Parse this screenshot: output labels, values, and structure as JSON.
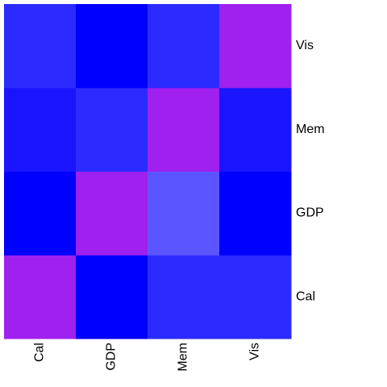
{
  "chart_data": {
    "type": "heatmap",
    "title": "",
    "xlabel": "",
    "ylabel": "",
    "x_categories": [
      "Cal",
      "GDP",
      "Mem",
      "Vis"
    ],
    "y_categories": [
      "Cal",
      "GDP",
      "Mem",
      "Vis"
    ],
    "y_axis_position": "right",
    "x_tick_rotation_degrees": -90,
    "legend": "none",
    "grid": false,
    "colors": [
      "#0000FF",
      "#1A14FF",
      "#2C2BFF",
      "#5A55FF",
      "#A020F0"
    ],
    "values": [
      [
        1.0,
        0.0,
        0.2,
        0.2
      ],
      [
        0.0,
        1.0,
        0.35,
        0.0
      ],
      [
        0.1,
        0.2,
        1.0,
        0.1
      ],
      [
        0.2,
        0.0,
        0.2,
        1.0
      ]
    ],
    "cell_colors": [
      [
        "#A020F0",
        "#0000FF",
        "#2C2BFF",
        "#2C2BFF"
      ],
      [
        "#0000FF",
        "#A020F0",
        "#5A55FF",
        "#0000FF"
      ],
      [
        "#1A14FF",
        "#2C2BFF",
        "#A020F0",
        "#1A14FF"
      ],
      [
        "#2C2BFF",
        "#0000FF",
        "#2C2BFF",
        "#A020F0"
      ]
    ]
  }
}
